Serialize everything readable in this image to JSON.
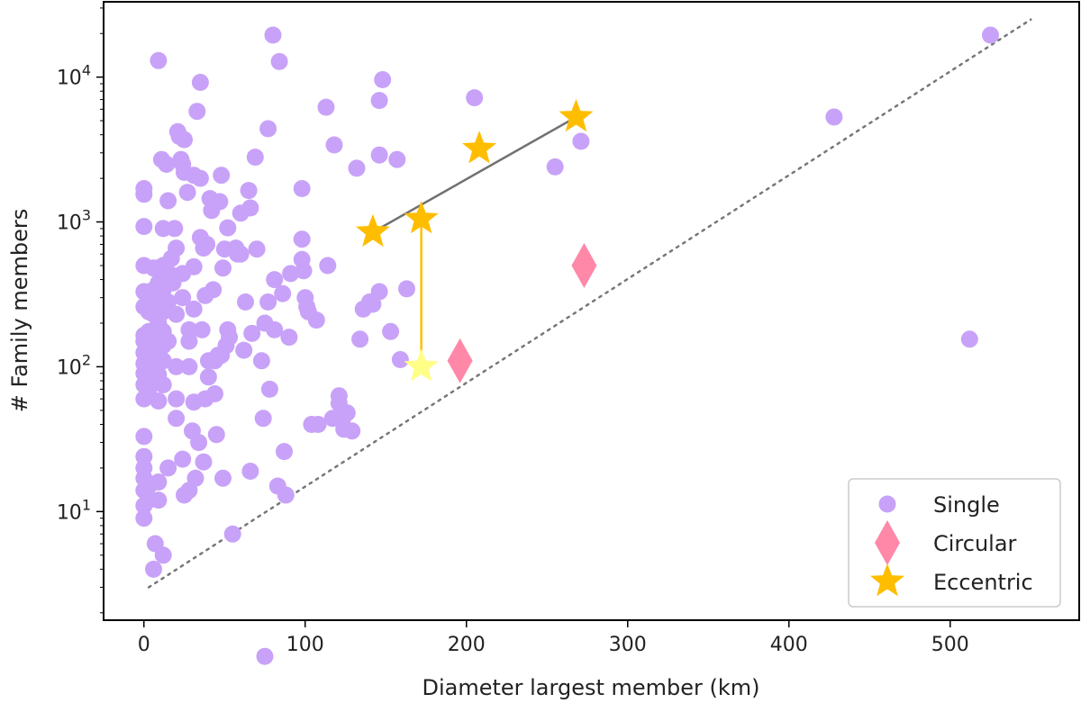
{
  "chart_data": {
    "type": "scatter",
    "title": "",
    "xlabel": "Diameter largest member (km)",
    "ylabel": "# Family members",
    "xlim": [
      -25,
      580
    ],
    "ylim_log10": [
      0.25,
      4.52
    ],
    "y_scale": "log",
    "x_ticks": [
      0,
      100,
      200,
      300,
      400,
      500
    ],
    "x_tick_labels": [
      "0",
      "100",
      "200",
      "300",
      "400",
      "500"
    ],
    "y_ticks": [
      10,
      100,
      1000,
      10000
    ],
    "y_tick_labels": [
      {
        "base": "10",
        "exp": "1"
      },
      {
        "base": "10",
        "exp": "2"
      },
      {
        "base": "10",
        "exp": "3"
      },
      {
        "base": "10",
        "exp": "4"
      }
    ],
    "grid": false,
    "legend_position": "lower right",
    "legend": [
      {
        "label": "Single",
        "marker": "circle",
        "color": "#c8a2f8"
      },
      {
        "label": "Circular",
        "marker": "diamond",
        "color": "#ff88a8"
      },
      {
        "label": "Eccentric",
        "marker": "star",
        "color": "#ffbd00"
      }
    ],
    "reference_line": {
      "style": "dotted",
      "color": "#777777",
      "points": [
        [
          3,
          3
        ],
        [
          550,
          25000
        ]
      ]
    },
    "connectors": [
      {
        "color": "#707070",
        "points": [
          [
            142,
            850
          ],
          [
            268,
            5300
          ]
        ]
      },
      {
        "color": "#ffc000",
        "points": [
          [
            172,
            1050
          ],
          [
            172,
            100
          ]
        ]
      }
    ],
    "series": [
      {
        "name": "Single",
        "marker": "circle",
        "color": "#c8a2f8",
        "points": [
          [
            0,
            1700
          ],
          [
            0,
            1550
          ],
          [
            0,
            930
          ],
          [
            0,
            500
          ],
          [
            0,
            330
          ],
          [
            0,
            260
          ],
          [
            0,
            165
          ],
          [
            0,
            150
          ],
          [
            0,
            125
          ],
          [
            0,
            105
          ],
          [
            0,
            90
          ],
          [
            0,
            75
          ],
          [
            0,
            60
          ],
          [
            0,
            33
          ],
          [
            0,
            24
          ],
          [
            0,
            20
          ],
          [
            0,
            17
          ],
          [
            0,
            14
          ],
          [
            0,
            11
          ],
          [
            0,
            9
          ],
          [
            3,
            300
          ],
          [
            3,
            240
          ],
          [
            3,
            175
          ],
          [
            3,
            140
          ],
          [
            3,
            115
          ],
          [
            3,
            95
          ],
          [
            3,
            85
          ],
          [
            3,
            70
          ],
          [
            3,
            15
          ],
          [
            3,
            12
          ],
          [
            6,
            480
          ],
          [
            6,
            340
          ],
          [
            6,
            230
          ],
          [
            6,
            160
          ],
          [
            6,
            130
          ],
          [
            6,
            110
          ],
          [
            6,
            95
          ],
          [
            6,
            80
          ],
          [
            6,
            4
          ],
          [
            7,
            6
          ],
          [
            9,
            13000
          ],
          [
            9,
            480
          ],
          [
            9,
            380
          ],
          [
            9,
            290
          ],
          [
            9,
            200
          ],
          [
            9,
            145
          ],
          [
            9,
            118
          ],
          [
            9,
            88
          ],
          [
            9,
            58
          ],
          [
            9,
            16
          ],
          [
            9,
            12
          ],
          [
            11,
            2700
          ],
          [
            12,
            900
          ],
          [
            12,
            500
          ],
          [
            12,
            340
          ],
          [
            12,
            240
          ],
          [
            12,
            175
          ],
          [
            12,
            140
          ],
          [
            12,
            110
          ],
          [
            12,
            75
          ],
          [
            12,
            5
          ],
          [
            14,
            2500
          ],
          [
            15,
            1400
          ],
          [
            15,
            280
          ],
          [
            15,
            150
          ],
          [
            15,
            20
          ],
          [
            17,
            560
          ],
          [
            17,
            430
          ],
          [
            18,
            380
          ],
          [
            19,
            900
          ],
          [
            20,
            660
          ],
          [
            20,
            230
          ],
          [
            20,
            100
          ],
          [
            20,
            60
          ],
          [
            20,
            44
          ],
          [
            21,
            4200
          ],
          [
            22,
            3900
          ],
          [
            23,
            2700
          ],
          [
            24,
            2500
          ],
          [
            24,
            440
          ],
          [
            24,
            300
          ],
          [
            24,
            23
          ],
          [
            25,
            3700
          ],
          [
            25,
            2200
          ],
          [
            25,
            13
          ],
          [
            27,
            1600
          ],
          [
            28,
            180
          ],
          [
            28,
            150
          ],
          [
            28,
            100
          ],
          [
            28,
            14
          ],
          [
            30,
            36
          ],
          [
            31,
            2100
          ],
          [
            31,
            490
          ],
          [
            31,
            250
          ],
          [
            31,
            57
          ],
          [
            32,
            17
          ],
          [
            33,
            5800
          ],
          [
            34,
            30
          ],
          [
            35,
            9200
          ],
          [
            35,
            2000
          ],
          [
            35,
            780
          ],
          [
            36,
            180
          ],
          [
            37,
            660
          ],
          [
            37,
            22
          ],
          [
            38,
            60
          ],
          [
            38,
            310
          ],
          [
            39,
            700
          ],
          [
            40,
            110
          ],
          [
            40,
            85
          ],
          [
            41,
            1450
          ],
          [
            42,
            1200
          ],
          [
            43,
            340
          ],
          [
            44,
            65
          ],
          [
            44,
            110
          ],
          [
            45,
            34
          ],
          [
            46,
            120
          ],
          [
            47,
            1380
          ],
          [
            48,
            2100
          ],
          [
            48,
            120
          ],
          [
            49,
            480
          ],
          [
            49,
            17
          ],
          [
            50,
            650
          ],
          [
            51,
            140
          ],
          [
            52,
            910
          ],
          [
            52,
            180
          ],
          [
            53,
            160
          ],
          [
            55,
            7
          ],
          [
            57,
            660
          ],
          [
            58,
            600
          ],
          [
            60,
            1150
          ],
          [
            60,
            600
          ],
          [
            62,
            130
          ],
          [
            63,
            280
          ],
          [
            65,
            1650
          ],
          [
            66,
            1250
          ],
          [
            66,
            19
          ],
          [
            67,
            170
          ],
          [
            69,
            2800
          ],
          [
            70,
            650
          ],
          [
            73,
            110
          ],
          [
            74,
            44
          ],
          [
            75,
            1
          ],
          [
            75,
            200
          ],
          [
            77,
            4400
          ],
          [
            77,
            280
          ],
          [
            78,
            70
          ],
          [
            80,
            19500
          ],
          [
            81,
            180
          ],
          [
            81,
            400
          ],
          [
            83,
            15
          ],
          [
            84,
            12800
          ],
          [
            86,
            320
          ],
          [
            87,
            26
          ],
          [
            88,
            13
          ],
          [
            90,
            160
          ],
          [
            91,
            440
          ],
          [
            98,
            1700
          ],
          [
            98,
            760
          ],
          [
            98,
            550
          ],
          [
            99,
            460
          ],
          [
            100,
            300
          ],
          [
            101,
            260
          ],
          [
            102,
            240
          ],
          [
            104,
            40
          ],
          [
            107,
            210
          ],
          [
            108,
            40
          ],
          [
            113,
            6200
          ],
          [
            114,
            500
          ],
          [
            117,
            44
          ],
          [
            118,
            3400
          ],
          [
            121,
            56
          ],
          [
            121,
            63
          ],
          [
            123,
            43
          ],
          [
            124,
            37
          ],
          [
            126,
            48
          ],
          [
            129,
            36
          ],
          [
            132,
            2350
          ],
          [
            134,
            155
          ],
          [
            136,
            250
          ],
          [
            140,
            280
          ],
          [
            142,
            270
          ],
          [
            146,
            330
          ],
          [
            146,
            2900
          ],
          [
            146,
            6900
          ],
          [
            148,
            9600
          ],
          [
            153,
            175
          ],
          [
            157,
            2700
          ],
          [
            159,
            112
          ],
          [
            163,
            345
          ],
          [
            205,
            7200
          ],
          [
            255,
            2400
          ],
          [
            271,
            3600
          ],
          [
            428,
            5300
          ],
          [
            512,
            155
          ],
          [
            525,
            19500
          ]
        ]
      },
      {
        "name": "Circular",
        "marker": "diamond",
        "color": "#ff88a8",
        "points": [
          [
            196,
            110
          ],
          [
            273,
            500
          ]
        ]
      },
      {
        "name": "Eccentric",
        "marker": "star",
        "points": [
          [
            142,
            850
          ],
          [
            172,
            1050
          ],
          [
            208,
            3200
          ],
          [
            268,
            5300
          ],
          [
            172,
            100
          ]
        ],
        "colors": [
          "#ffbd00",
          "#ffbd00",
          "#ffbd00",
          "#ffbd00",
          "#ffff88"
        ]
      }
    ]
  }
}
